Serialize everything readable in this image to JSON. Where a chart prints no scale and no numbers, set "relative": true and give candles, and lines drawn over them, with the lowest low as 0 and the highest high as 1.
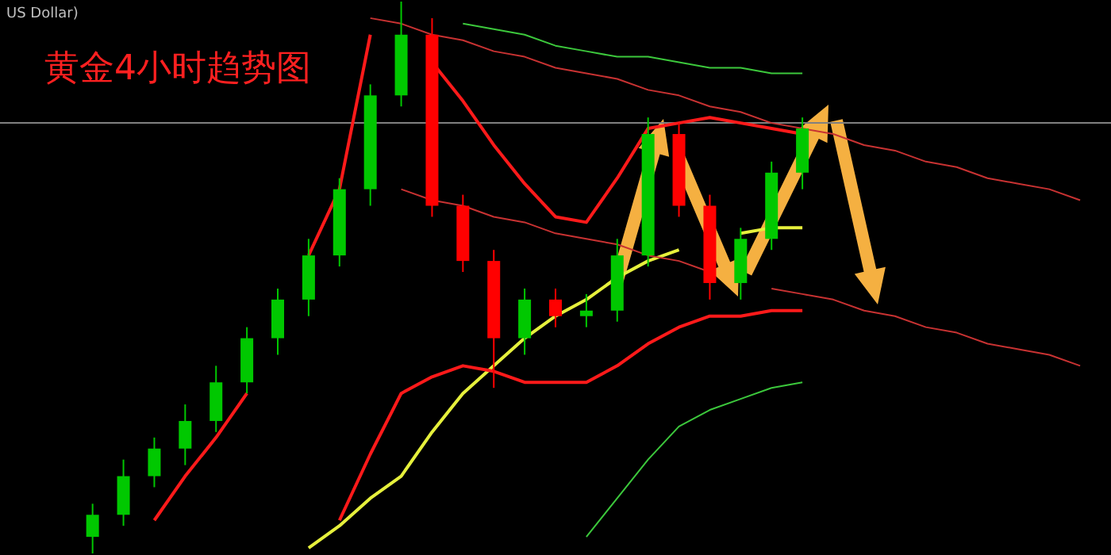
{
  "chart_data": {
    "type": "candlestick",
    "title": "黄金4小时趋势图",
    "annotations": [
      "US Dollar)"
    ],
    "relative": true,
    "categories": [
      null,
      null,
      null,
      null,
      null,
      null,
      null,
      null,
      null,
      null,
      null,
      null,
      null,
      null,
      null,
      null,
      null,
      null,
      null,
      null,
      null,
      null,
      null,
      null,
      null,
      null,
      null,
      null,
      null,
      null,
      null,
      null,
      null,
      null,
      null,
      null
    ],
    "ohlc": [
      null,
      null,
      null,
      [
        0.03,
        0.09,
        0,
        0.07
      ],
      [
        0.07,
        0.17,
        0.05,
        0.14
      ],
      [
        0.14,
        0.21,
        0.12,
        0.19
      ],
      [
        0.19,
        0.27,
        0.16,
        0.24
      ],
      [
        0.24,
        0.34,
        0.22,
        0.31
      ],
      [
        0.31,
        0.41,
        0.29,
        0.39
      ],
      [
        0.39,
        0.48,
        0.36,
        0.46
      ],
      [
        0.46,
        0.57,
        0.43,
        0.54
      ],
      [
        0.54,
        0.68,
        0.52,
        0.66
      ],
      [
        0.66,
        0.85,
        0.63,
        0.83
      ],
      [
        0.83,
        1,
        0.81,
        0.94
      ],
      [
        0.94,
        0.97,
        0.61,
        0.63
      ],
      [
        0.63,
        0.65,
        0.51,
        0.53
      ],
      [
        0.53,
        0.55,
        0.3,
        0.39
      ],
      [
        0.39,
        0.48,
        0.36,
        0.46
      ],
      [
        0.46,
        0.48,
        0.41,
        0.43
      ],
      [
        0.43,
        0.47,
        0.41,
        0.44
      ],
      [
        0.44,
        0.57,
        0.42,
        0.54
      ],
      [
        0.54,
        0.79,
        0.52,
        0.76
      ],
      [
        0.76,
        0.78,
        0.61,
        0.63
      ],
      [
        0.63,
        0.65,
        0.46,
        0.49
      ],
      [
        0.49,
        0.59,
        0.46,
        0.57
      ],
      [
        0.57,
        0.71,
        0.55,
        0.69
      ],
      [
        0.69,
        0.79,
        0.66,
        0.77
      ],
      null,
      null,
      null,
      null,
      null,
      null,
      null,
      null,
      null
    ],
    "colors": [
      null,
      null,
      null,
      "#00c800",
      "#00c800",
      "#00c800",
      "#00c800",
      "#00c800",
      "#00c800",
      "#00c800",
      "#00c800",
      "#00c800",
      "#00c800",
      "#00c800",
      "#ff0000",
      "#ff0000",
      "#ff0000",
      "#00c800",
      "#ff0000",
      "#00c800",
      "#00c800",
      "#00c800",
      "#ff0000",
      "#ff0000",
      "#00c800",
      "#00c800",
      "#00c800",
      null,
      null,
      null,
      null,
      null,
      null,
      null,
      null,
      null
    ],
    "series": [
      {
        "type": "line",
        "color": "#e6f03c",
        "values": [
          null,
          null,
          null,
          null,
          null,
          null,
          null,
          null,
          null,
          null,
          0.01,
          0.05,
          0.1,
          0.14,
          0.22,
          0.29,
          0.34,
          0.39,
          0.43,
          0.46,
          0.5,
          0.53,
          0.55,
          null,
          0.58,
          0.59,
          0.59,
          null,
          null,
          null,
          null,
          null,
          null,
          null,
          null,
          null
        ]
      },
      {
        "type": "line",
        "color": "#ff1a1a",
        "values": [
          null,
          null,
          null,
          null,
          null,
          0.06,
          0.14,
          0.21,
          0.29,
          null,
          0.54,
          0.66,
          0.94,
          null,
          0.89,
          0.82,
          0.74,
          0.67,
          0.61,
          0.6,
          0.68,
          0.77,
          0.78,
          0.79,
          0.78,
          0.77,
          0.76,
          null,
          null,
          null,
          null,
          null,
          null,
          null,
          null,
          null
        ]
      },
      {
        "type": "line",
        "color": "#ff1a1a",
        "values": [
          null,
          null,
          null,
          null,
          null,
          null,
          null,
          null,
          null,
          null,
          null,
          0.06,
          0.18,
          0.29,
          0.32,
          0.34,
          0.33,
          0.31,
          0.31,
          0.31,
          0.34,
          0.38,
          0.41,
          0.43,
          0.43,
          0.44,
          0.44,
          null,
          null,
          null,
          null,
          null,
          null,
          null,
          null,
          null
        ]
      },
      {
        "type": "line",
        "color": "#3cc83c",
        "values": [
          null,
          null,
          null,
          null,
          null,
          null,
          null,
          null,
          null,
          null,
          null,
          null,
          null,
          null,
          null,
          0.96,
          0.95,
          0.94,
          0.92,
          0.91,
          0.9,
          0.9,
          0.89,
          0.88,
          0.88,
          0.87,
          0.87,
          null,
          null,
          null,
          null,
          null,
          null,
          null,
          null,
          null
        ]
      },
      {
        "type": "line",
        "color": "#3cc83c",
        "values": [
          null,
          null,
          null,
          null,
          null,
          null,
          null,
          null,
          null,
          null,
          null,
          null,
          null,
          null,
          null,
          null,
          null,
          null,
          null,
          0.03,
          0.1,
          0.17,
          0.23,
          0.26,
          0.28,
          0.3,
          0.31,
          null,
          null,
          null,
          null,
          null,
          null,
          null,
          null,
          null
        ]
      },
      {
        "type": "line",
        "color": "#c83232",
        "values": [
          null,
          null,
          null,
          null,
          null,
          null,
          null,
          null,
          null,
          null,
          null,
          null,
          0.97,
          0.96,
          0.94,
          0.93,
          0.91,
          0.9,
          0.88,
          0.87,
          0.86,
          0.84,
          0.83,
          0.81,
          0.8,
          0.78,
          0.77,
          0.76,
          0.74,
          0.73,
          0.71,
          0.7,
          0.68,
          0.67,
          0.66,
          0.64
        ]
      },
      {
        "type": "line",
        "color": "#c83232",
        "values": [
          null,
          null,
          null,
          null,
          null,
          null,
          null,
          null,
          null,
          null,
          null,
          null,
          null,
          0.66,
          0.64,
          0.63,
          0.61,
          0.6,
          0.58,
          0.57,
          0.56,
          0.54,
          0.53,
          0.51,
          null,
          0.48,
          0.47,
          0.46,
          0.44,
          0.43,
          0.41,
          0.4,
          0.38,
          0.37,
          0.36,
          0.34
        ]
      }
    ],
    "ref_lines": [
      {
        "axis": "y",
        "value": 0.78,
        "color": "#808080"
      }
    ]
  }
}
